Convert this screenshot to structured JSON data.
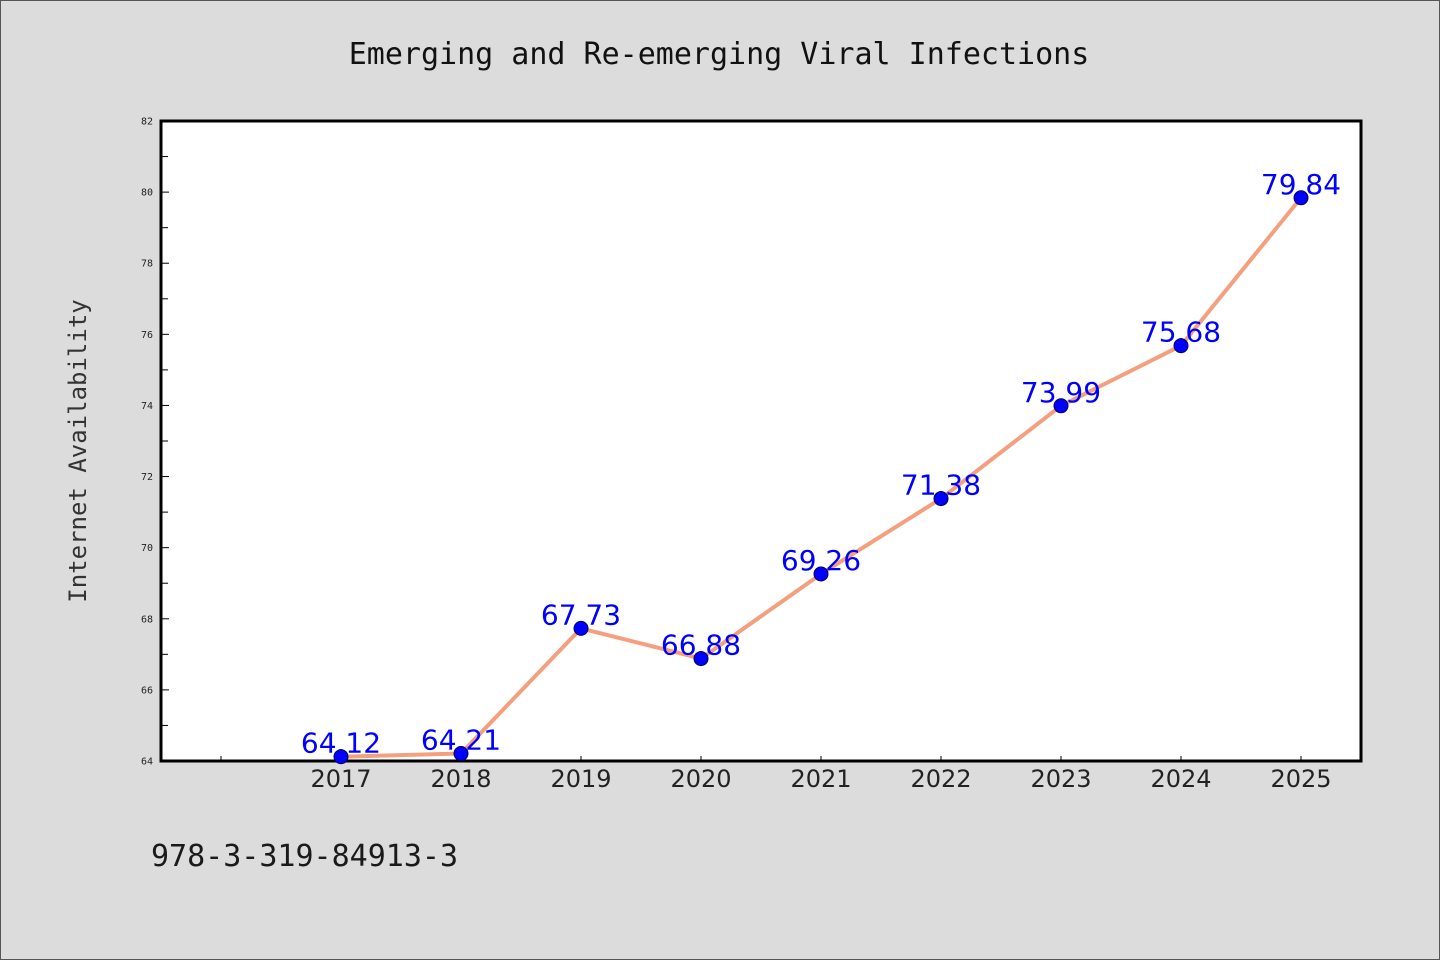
{
  "caption": "978-3-319-84913-3",
  "colors": {
    "background": "#dcdcdc",
    "plot_background": "#ffffff",
    "axis": "#000000"
  },
  "chart_data": {
    "type": "line",
    "title": "Emerging and Re-emerging Viral Infections",
    "ylabel": "Internet Availability",
    "x": [
      2017,
      2018,
      2019,
      2020,
      2021,
      2022,
      2023,
      2024,
      2025
    ],
    "series": [
      {
        "values": [
          64.12,
          64.21,
          67.73,
          66.88,
          69.26,
          71.38,
          73.99,
          75.68,
          79.84
        ],
        "line_color": "#f4a07e",
        "marker_color": "#0000ff",
        "label_color": "#0000ff"
      }
    ],
    "xlim": [
      2015.5,
      2025.5
    ],
    "ylim": [
      64,
      82
    ],
    "yticks": [
      64,
      66,
      68,
      70,
      72,
      74,
      76,
      78,
      80,
      82
    ],
    "grid": false,
    "legend": "none",
    "data_labels": true
  }
}
